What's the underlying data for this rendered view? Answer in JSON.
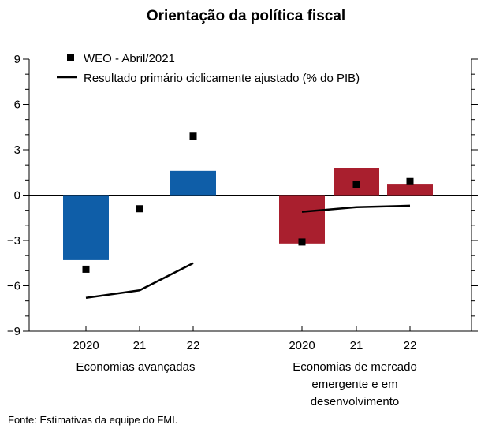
{
  "title": "Orientação da política fiscal",
  "source": "Fonte: Estimativas da equipe do FMI.",
  "legend": {
    "marker_label": "WEO - Abril/2021",
    "line_label": "Resultado primário ciclicamente ajustado (% do PIB)"
  },
  "groups": [
    {
      "label": "Economias avançadas"
    },
    {
      "label": "Economias de mercado emergente e em desenvolvimento"
    }
  ],
  "chart_data": {
    "type": "bar",
    "title": "Orientação da política fiscal",
    "categories": [
      "2020",
      "21",
      "22",
      "2020",
      "21",
      "22"
    ],
    "groups": [
      "Economias avançadas",
      "Economias de mercado emergente e em desenvolvimento"
    ],
    "ylim": [
      -9,
      9
    ],
    "yticks": [
      -9,
      -6,
      -3,
      0,
      3,
      6,
      9
    ],
    "ytick_labels": [
      "−9",
      "−6",
      "−3",
      "0",
      "3",
      "6",
      "9"
    ],
    "grid": false,
    "legend_position": "top-left",
    "colors": {
      "advanced": "#0f5ea8",
      "emerging": "#a91f2e",
      "marker": "#000000",
      "line": "#000000"
    },
    "bars": [
      -4.3,
      null,
      1.6,
      -3.2,
      1.8,
      0.7
    ],
    "weo_markers": [
      -4.9,
      -0.9,
      3.9,
      -3.1,
      0.7,
      0.9
    ],
    "cyclically_adjusted_balance": [
      -6.8,
      -6.3,
      -4.5,
      -1.1,
      -0.8,
      -0.7
    ]
  }
}
